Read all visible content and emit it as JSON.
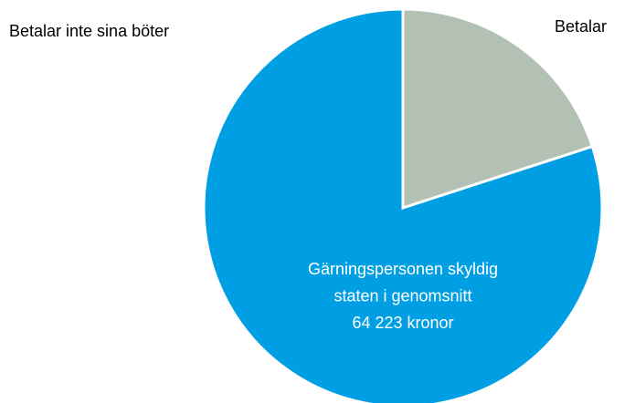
{
  "chart_data": {
    "type": "pie",
    "categories": [
      "Betalar",
      "Betalar inte sina böter"
    ],
    "values": [
      20,
      80
    ],
    "colors": [
      "#b3c1b5",
      "#009fe3"
    ],
    "annotation": [
      "Gärningspersonen skyldig",
      "staten i genomsnitt",
      "64 223 kronor"
    ]
  }
}
